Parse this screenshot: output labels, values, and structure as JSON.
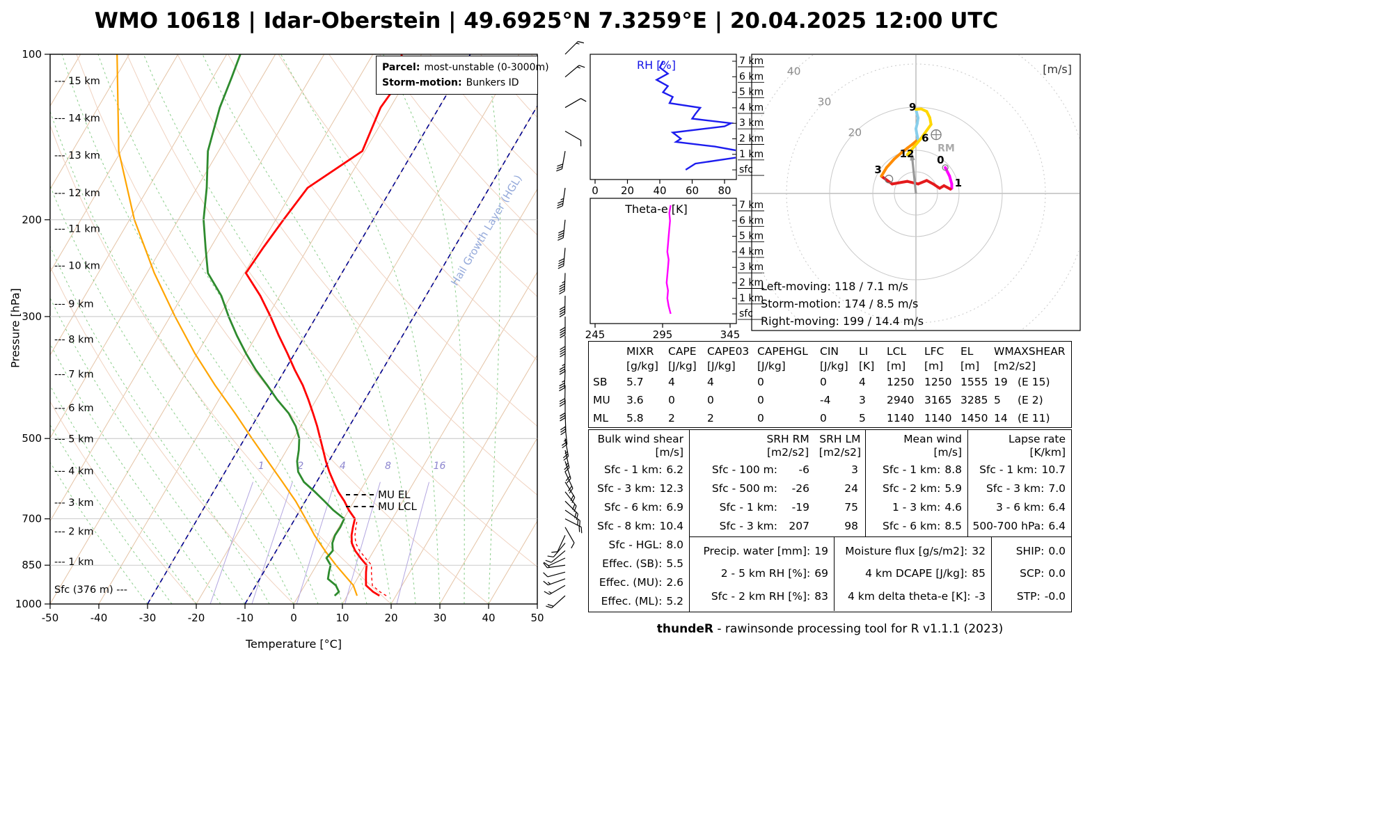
{
  "title": "WMO 10618 | Idar-Oberstein | 49.6925°N 7.3259°E | 20.04.2025 12:00 UTC",
  "footer": {
    "brand": "thundeR",
    "text": " - rawinsonde processing tool for R v1.1.1 (2023)"
  },
  "skewt": {
    "xlabel": "Temperature [°C]",
    "ylabel": "Pressure [hPa]",
    "pressure_ticks": [
      100,
      200,
      300,
      500,
      700,
      850,
      1000
    ],
    "temp_ticks": [
      -50,
      -40,
      -30,
      -20,
      -10,
      0,
      10,
      20,
      30,
      40,
      50
    ],
    "height_labels": [
      {
        "label": "--- 15 km",
        "p": 112
      },
      {
        "label": "--- 14 km",
        "p": 131
      },
      {
        "label": "--- 13 km",
        "p": 153
      },
      {
        "label": "--- 12 km",
        "p": 179
      },
      {
        "label": "--- 11 km",
        "p": 208
      },
      {
        "label": "--- 10 km",
        "p": 243
      },
      {
        "label": "--- 9 km",
        "p": 285
      },
      {
        "label": "--- 8 km",
        "p": 331
      },
      {
        "label": "--- 7 km",
        "p": 383
      },
      {
        "label": "--- 6 km",
        "p": 441
      },
      {
        "label": "--- 5 km",
        "p": 502
      },
      {
        "label": "--- 4 km",
        "p": 574
      },
      {
        "label": "--- 3 km",
        "p": 655
      },
      {
        "label": "--- 2 km",
        "p": 740
      },
      {
        "label": "--- 1 km",
        "p": 840
      },
      {
        "label": "Sfc (376 m) ---",
        "p": 944
      }
    ],
    "mixing_ratio_values": [
      1,
      2,
      4,
      8,
      16
    ],
    "legend": {
      "parcel_label": "Parcel:",
      "parcel_value": "most-unstable (0-3000m)",
      "storm_label": "Storm-motion:",
      "storm_value": "Bunkers ID"
    },
    "annotations": [
      {
        "label": "MU EL",
        "p": 676
      },
      {
        "label": "MU LCL",
        "p": 700
      }
    ],
    "hgl_label": "Hail Growth Layer (HGL)"
  },
  "panels": {
    "rh": {
      "title": "RH [%]"
    },
    "thetae": {
      "title": "Theta-e [K]"
    },
    "height_labels": [
      "7 km",
      "6 km",
      "5 km",
      "4 km",
      "3 km",
      "2 km",
      "1 km",
      "sfc"
    ]
  },
  "hodograph": {
    "unit": "[m/s]",
    "ring_labels": [
      20,
      30,
      40
    ],
    "rm_label": "RM",
    "info": [
      "Left-moving: 118 / 7.1 m/s",
      "Storm-motion: 174 / 8.5 m/s",
      "Right-moving: 199 / 14.4 m/s"
    ]
  },
  "indices_table": {
    "columns": [
      [
        "MIXR",
        "[g/kg]"
      ],
      [
        "CAPE",
        "[J/kg]"
      ],
      [
        "CAPE03",
        "[J/kg]"
      ],
      [
        "CAPEHGL",
        "[J/kg]"
      ],
      [
        "CIN",
        "[J/kg]"
      ],
      [
        "LI",
        "[K]"
      ],
      [
        "LCL",
        "[m]"
      ],
      [
        "LFC",
        "[m]"
      ],
      [
        "EL",
        "[m]"
      ],
      [
        "WMAXSHEAR",
        "[m2/s2]"
      ]
    ],
    "rows": [
      {
        "label": "SB",
        "values": [
          "5.7",
          "4",
          "4",
          "0",
          "0",
          "4",
          "1250",
          "1250",
          "1555"
        ],
        "wmax": "19",
        "wmax_e": "(E 15)"
      },
      {
        "label": "MU",
        "values": [
          "3.6",
          "0",
          "0",
          "0",
          "-4",
          "3",
          "2940",
          "3165",
          "3285"
        ],
        "wmax": "5",
        "wmax_e": "(E 2)"
      },
      {
        "label": "ML",
        "values": [
          "5.8",
          "2",
          "2",
          "0",
          "0",
          "5",
          "1140",
          "1140",
          "1450"
        ],
        "wmax": "14",
        "wmax_e": "(E 11)"
      }
    ]
  },
  "params": {
    "bulk_shear": {
      "title": "Bulk wind shear",
      "unit": "[m/s]",
      "rows": [
        [
          "Sfc - 1 km:",
          "6.2"
        ],
        [
          "Sfc - 3 km:",
          "12.3"
        ],
        [
          "Sfc - 6 km:",
          "6.9"
        ],
        [
          "Sfc - 8 km:",
          "10.4"
        ],
        [
          "Sfc - HGL:",
          "8.0"
        ],
        [
          "Effec. (SB):",
          "5.5"
        ],
        [
          "Effec. (MU):",
          "2.6"
        ],
        [
          "Effec. (ML):",
          "5.2"
        ]
      ]
    },
    "srh": {
      "rm_title": "SRH RM",
      "rm_unit": "[m2/s2]",
      "lm_title": "SRH LM",
      "lm_unit": "[m2/s2]",
      "rows": [
        [
          "Sfc - 100 m:",
          "-6",
          "3"
        ],
        [
          "Sfc - 500 m:",
          "-26",
          "24"
        ],
        [
          "Sfc - 1 km:",
          "-19",
          "75"
        ],
        [
          "Sfc - 3 km:",
          "207",
          "98"
        ]
      ]
    },
    "mean_wind": {
      "title": "Mean wind",
      "unit": "[m/s]",
      "rows": [
        [
          "Sfc - 1 km:",
          "8.8"
        ],
        [
          "Sfc - 2 km:",
          "5.9"
        ],
        [
          "1 - 3 km:",
          "4.6"
        ],
        [
          "Sfc - 6 km:",
          "8.5"
        ]
      ]
    },
    "lapse_rate": {
      "title": "Lapse rate",
      "unit": "[K/km]",
      "rows": [
        [
          "Sfc - 1 km:",
          "10.7"
        ],
        [
          "Sfc - 3 km:",
          "7.0"
        ],
        [
          "3 - 6 km:",
          "6.4"
        ],
        [
          "500-700 hPa:",
          "6.4"
        ]
      ]
    },
    "moisture": {
      "rows": [
        [
          "Precip. water [mm]:",
          "19"
        ],
        [
          "2 - 5 km RH [%]:",
          "69"
        ],
        [
          "Sfc - 2 km RH [%]:",
          "83"
        ]
      ]
    },
    "flux": {
      "rows": [
        [
          "Moisture flux [g/s/m2]:",
          "32"
        ],
        [
          "4 km DCAPE [J/kg]:",
          "85"
        ],
        [
          "4 km delta theta-e [K]:",
          "-3"
        ]
      ]
    },
    "composite": {
      "rows": [
        [
          "SHIP:",
          "0.0"
        ],
        [
          "SCP:",
          "0.0"
        ],
        [
          "STP:",
          "-0.0"
        ]
      ]
    }
  },
  "colors": {
    "temperature": "#ff0000",
    "dewpoint": "#2e8b2e",
    "parcel": "#ffa500",
    "virtual": "#ff0000",
    "rh_line": "#1c1cee",
    "thetae_line": "#ff00ff",
    "isotherm": "#e4c3a5",
    "dry_adiabat": "#f0d2c0",
    "moist_adiabat": "#6cc06c",
    "mixing": "#b3a6e0",
    "mixing_label": "#8d86cf",
    "hgl": "#00008b",
    "grid_gray": "#c8c8c8",
    "cross_gray": "#9c9c9c",
    "ring_label": "#8c8c8c",
    "marker_gray": "#777777",
    "rm_text": "#aaaaaa",
    "hodo_0_1": "#ff00ff",
    "hodo_1_3": "#e41a1c",
    "hodo_3_6": "#ff8c00",
    "hodo_6_9": "#87ceeb",
    "hodo_9_12": "#ffd700"
  },
  "chart_data": [
    {
      "id": "sounding",
      "type": "line",
      "title": "Skew-T log-P sounding",
      "xlabel": "Temperature [°C]",
      "ylabel": "Pressure [hPa]",
      "xlim": [
        -50,
        50
      ],
      "ylim": [
        1000,
        100
      ],
      "levels_hPa": [
        966,
        950,
        925,
        900,
        875,
        850,
        825,
        800,
        775,
        750,
        725,
        700,
        675,
        650,
        625,
        600,
        575,
        550,
        525,
        500,
        475,
        450,
        425,
        400,
        375,
        350,
        325,
        300,
        275,
        250,
        225,
        200,
        175,
        150,
        125,
        110,
        100
      ],
      "temperature": [
        16.6,
        14.8,
        12.6,
        11.8,
        11.0,
        10.3,
        8.2,
        6.2,
        4.6,
        3.6,
        2.9,
        2.3,
        0.0,
        -2.0,
        -4.4,
        -6.5,
        -8.6,
        -10.6,
        -12.5,
        -14.5,
        -16.6,
        -19.0,
        -21.6,
        -24.5,
        -28.0,
        -31.5,
        -35.4,
        -39.4,
        -44.0,
        -49.7,
        -49.2,
        -48.4,
        -47.3,
        -40.5,
        -42.0,
        -41.2,
        -44.1
      ],
      "dewpoint": [
        7.4,
        7.8,
        6.4,
        4.0,
        3.4,
        2.9,
        1.2,
        1.6,
        0.6,
        0.2,
        0.3,
        0.1,
        -3.2,
        -6.1,
        -9.2,
        -12.6,
        -15.0,
        -16.5,
        -17.5,
        -18.8,
        -21.0,
        -24.0,
        -28.0,
        -31.8,
        -36.0,
        -40.0,
        -44.0,
        -48.0,
        -52.0,
        -57.5,
        -61.0,
        -64.8,
        -68.0,
        -72.2,
        -75.0,
        -76.2,
        -77.2
      ],
      "virtual_levels": [
        966,
        950,
        925,
        900,
        875,
        850,
        825,
        800,
        775,
        750,
        725,
        700
      ],
      "virtual_temperature": [
        18.0,
        16.2,
        13.9,
        13.0,
        12.1,
        11.3,
        9.2,
        7.1,
        5.4,
        4.3,
        3.5,
        2.8
      ],
      "parcel_levels": [
        966,
        925,
        850,
        800,
        750,
        700,
        650,
        600,
        550,
        500,
        450,
        400,
        350,
        300,
        250,
        200,
        150,
        100
      ],
      "parcel": [
        12.0,
        10.0,
        4.0,
        0.0,
        -4.0,
        -7.8,
        -12.0,
        -17.0,
        -22.5,
        -28.5,
        -35.0,
        -42.5,
        -50.5,
        -59.0,
        -68.5,
        -79.0,
        -90.5,
        -102.5
      ]
    },
    {
      "id": "rh",
      "type": "line",
      "title": "RH [%]",
      "xlim": [
        0,
        100
      ],
      "x_ticks": [
        0,
        20,
        40,
        60,
        80
      ],
      "heights_km": [
        0,
        0.4,
        0.8,
        1.2,
        1.5,
        1.8,
        2.0,
        2.4,
        2.8,
        3.0,
        3.3,
        3.6,
        4.0,
        4.3,
        4.7,
        5.0,
        5.4,
        5.8,
        6.2,
        6.6,
        7.0
      ],
      "values": [
        56,
        62,
        88,
        90,
        74,
        50,
        53,
        48,
        80,
        84,
        60,
        62,
        65,
        46,
        48,
        42,
        45,
        38,
        45,
        40,
        42
      ]
    },
    {
      "id": "thetae",
      "type": "line",
      "title": "Theta-e [K]",
      "xlim": [
        245,
        365
      ],
      "x_ticks": [
        245,
        295,
        345
      ],
      "heights_km": [
        0,
        0.5,
        1,
        1.5,
        2,
        2.5,
        3,
        3.5,
        4,
        4.5,
        5,
        5.5,
        6,
        6.5,
        7
      ],
      "values": [
        301,
        299.5,
        298.5,
        299,
        298,
        298.5,
        299,
        299.5,
        298.5,
        299,
        299.5,
        300,
        300.5,
        300,
        301
      ]
    },
    {
      "id": "hodograph",
      "type": "line",
      "unit": "m/s",
      "rings": [
        5,
        10,
        20,
        30,
        40,
        50
      ],
      "points_h_u_v": [
        [
          0,
          6.8,
          6.0
        ],
        [
          0.25,
          7.8,
          4.0
        ],
        [
          0.5,
          8.3,
          2.2
        ],
        [
          0.75,
          8.3,
          1.2
        ],
        [
          1,
          8.0,
          1.0
        ],
        [
          1.25,
          6.5,
          1.8
        ],
        [
          1.5,
          5.5,
          1.2
        ],
        [
          1.75,
          4.0,
          2.2
        ],
        [
          2,
          2.5,
          3.0
        ],
        [
          2.25,
          0.5,
          2.2
        ],
        [
          2.5,
          -2.0,
          2.8
        ],
        [
          2.75,
          -5.5,
          2.2
        ],
        [
          3,
          -8.0,
          4.0
        ],
        [
          3.5,
          -6.8,
          6.0
        ],
        [
          4,
          -5.0,
          8.0
        ],
        [
          4.5,
          -3.4,
          9.4
        ],
        [
          5,
          -2.0,
          10.5
        ],
        [
          5.5,
          -0.8,
          11.4
        ],
        [
          6,
          0.5,
          12.5
        ],
        [
          6.5,
          0.2,
          13.8
        ],
        [
          7,
          0.0,
          15.0
        ],
        [
          7.5,
          0.3,
          16.2
        ],
        [
          8,
          0.5,
          17.5
        ],
        [
          8.5,
          0.2,
          18.6
        ],
        [
          9,
          0.0,
          19.5
        ],
        [
          9.5,
          1.2,
          19.6
        ],
        [
          10,
          2.5,
          19.0
        ],
        [
          10.5,
          3.2,
          17.6
        ],
        [
          11,
          3.5,
          16.0
        ],
        [
          11.5,
          1.0,
          12.5
        ],
        [
          12,
          -2.0,
          9.0
        ]
      ],
      "height_marks": [
        [
          0,
          -12,
          -6
        ],
        [
          1,
          6,
          -4
        ],
        [
          3,
          -10,
          -4
        ],
        [
          6,
          5,
          3
        ],
        [
          9,
          -10,
          2
        ],
        [
          12,
          -11,
          4
        ]
      ],
      "rm": {
        "dir": 199,
        "speed": 14.4
      },
      "lm": {
        "dir": 118,
        "speed": 7.1
      },
      "mean": {
        "dir": 174,
        "speed": 8.5
      }
    },
    {
      "id": "wind_barbs",
      "type": "barbs",
      "levels_p_dir_spd": [
        [
          966,
          228,
          9
        ],
        [
          925,
          240,
          8
        ],
        [
          900,
          250,
          8
        ],
        [
          875,
          255,
          6
        ],
        [
          850,
          262,
          8
        ],
        [
          825,
          245,
          5
        ],
        [
          800,
          230,
          4
        ],
        [
          775,
          220,
          4
        ],
        [
          750,
          205,
          5
        ],
        [
          725,
          150,
          5
        ],
        [
          700,
          117,
          9
        ],
        [
          675,
          125,
          9
        ],
        [
          650,
          135,
          9
        ],
        [
          625,
          142,
          10
        ],
        [
          600,
          148,
          10
        ],
        [
          575,
          155,
          11
        ],
        [
          550,
          162,
          11
        ],
        [
          525,
          167,
          12
        ],
        [
          500,
          170,
          12
        ],
        [
          475,
          174,
          13
        ],
        [
          450,
          178,
          14
        ],
        [
          425,
          180,
          15
        ],
        [
          400,
          181,
          16
        ],
        [
          375,
          182,
          17
        ],
        [
          350,
          181,
          18
        ],
        [
          325,
          180,
          19
        ],
        [
          300,
          180,
          20
        ],
        [
          275,
          181,
          21
        ],
        [
          250,
          182,
          22
        ],
        [
          225,
          185,
          21
        ],
        [
          200,
          186,
          20
        ],
        [
          175,
          188,
          17
        ],
        [
          150,
          190,
          14
        ],
        [
          138,
          120,
          5
        ],
        [
          125,
          60,
          6
        ],
        [
          110,
          50,
          8
        ],
        [
          100,
          45,
          8
        ]
      ]
    }
  ]
}
